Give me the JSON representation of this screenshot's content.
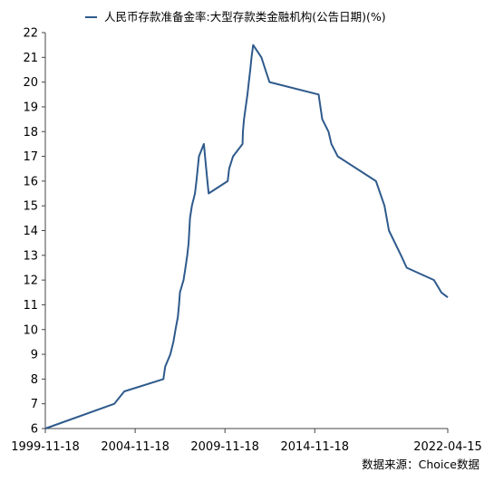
{
  "chart_data": {
    "type": "line",
    "series": [
      {
        "name": "人民币存款准备金率:大型存款类金融机构(公告日期)(%)",
        "color": "#2E5A8C",
        "points": [
          [
            "1999-11-18",
            6.0
          ],
          [
            "2003-09-21",
            7.0
          ],
          [
            "2004-04-11",
            7.5
          ],
          [
            "2006-06-16",
            8.0
          ],
          [
            "2006-07-21",
            8.5
          ],
          [
            "2006-11-03",
            9.0
          ],
          [
            "2007-01-05",
            9.5
          ],
          [
            "2007-02-16",
            10.0
          ],
          [
            "2007-04-05",
            10.5
          ],
          [
            "2007-04-29",
            11.0
          ],
          [
            "2007-05-18",
            11.5
          ],
          [
            "2007-07-30",
            12.0
          ],
          [
            "2007-09-06",
            12.5
          ],
          [
            "2007-10-13",
            13.0
          ],
          [
            "2007-11-10",
            13.5
          ],
          [
            "2007-12-08",
            14.5
          ],
          [
            "2008-01-16",
            15.0
          ],
          [
            "2008-03-18",
            15.5
          ],
          [
            "2008-04-16",
            16.0
          ],
          [
            "2008-05-12",
            16.5
          ],
          [
            "2008-06-07",
            17.0
          ],
          [
            "2008-09-15",
            17.5
          ],
          [
            "2008-11-26",
            16.0
          ],
          [
            "2008-12-22",
            15.5
          ],
          [
            "2010-01-12",
            16.0
          ],
          [
            "2010-02-12",
            16.5
          ],
          [
            "2010-05-02",
            17.0
          ],
          [
            "2010-11-10",
            17.5
          ],
          [
            "2010-11-19",
            18.0
          ],
          [
            "2010-12-10",
            18.5
          ],
          [
            "2011-01-14",
            19.0
          ],
          [
            "2011-02-18",
            19.5
          ],
          [
            "2011-03-18",
            20.0
          ],
          [
            "2011-04-17",
            20.5
          ],
          [
            "2011-05-12",
            21.0
          ],
          [
            "2011-06-14",
            21.5
          ],
          [
            "2011-11-30",
            21.0
          ],
          [
            "2012-02-18",
            20.5
          ],
          [
            "2012-05-12",
            20.0
          ],
          [
            "2015-02-04",
            19.5
          ],
          [
            "2015-04-19",
            18.5
          ],
          [
            "2015-08-25",
            18.0
          ],
          [
            "2015-10-23",
            17.5
          ],
          [
            "2016-02-29",
            17.0
          ],
          [
            "2018-04-17",
            16.0
          ],
          [
            "2018-10-07",
            15.0
          ],
          [
            "2019-01-04",
            14.0
          ],
          [
            "2019-09-06",
            13.0
          ],
          [
            "2020-01-01",
            12.5
          ],
          [
            "2021-07-09",
            12.0
          ],
          [
            "2021-12-06",
            11.5
          ],
          [
            "2022-04-15",
            11.3
          ]
        ]
      }
    ],
    "y_axis": {
      "min": 6,
      "max": 22,
      "ticks": [
        "6",
        "7",
        "8",
        "9",
        "10",
        "11",
        "12",
        "13",
        "14",
        "15",
        "16",
        "17",
        "18",
        "19",
        "20",
        "21",
        "22"
      ]
    },
    "x_axis": {
      "min": "1999-11-18",
      "max": "2022-04-15",
      "ticks": [
        {
          "date": "1999-11-18",
          "label": "1999-11-18"
        },
        {
          "date": "2004-11-18",
          "label": "2004-11-18"
        },
        {
          "date": "2009-11-18",
          "label": "2009-11-18"
        },
        {
          "date": "2014-11-18",
          "label": "2014-11-18"
        },
        {
          "date": "2022-04-15",
          "label": "2022-04-15"
        }
      ]
    },
    "legend": "top",
    "grid": false,
    "source": "数据来源：Choice数据"
  }
}
